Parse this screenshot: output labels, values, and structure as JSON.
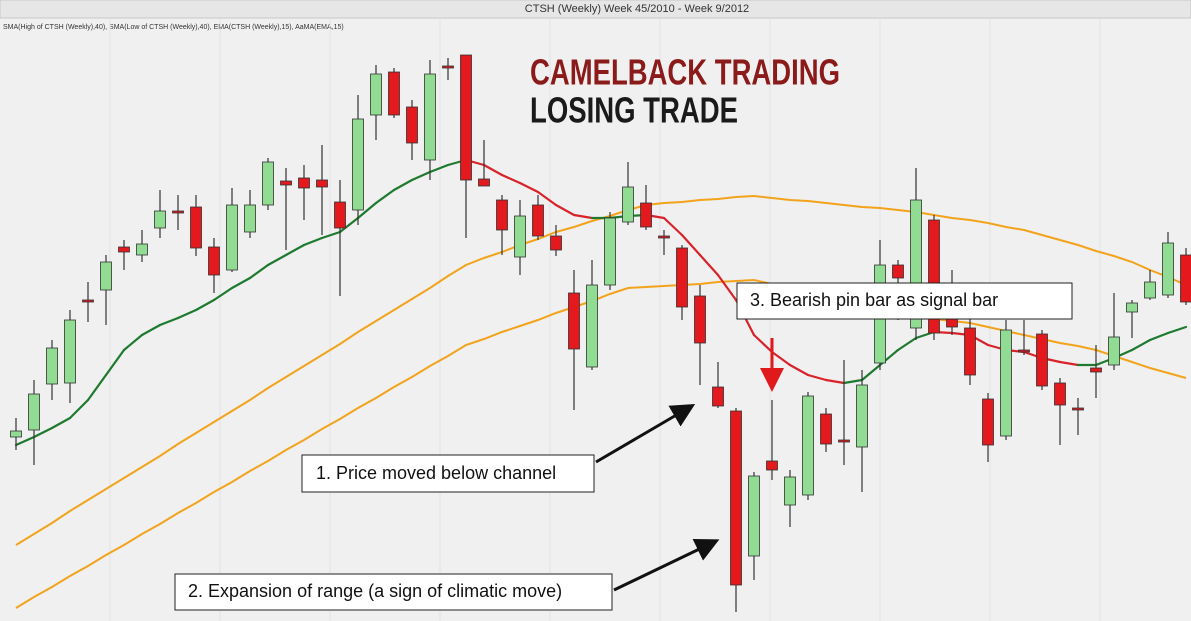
{
  "chart_data": {
    "type": "candlestick",
    "title": "CTSH (Weekly)  Week 45/2010 - Week 9/2012",
    "indicators": "SMA(High of CTSH (Weekly),40), SMA(Low of CTSH (Weekly),40), EMA(CTSH (Weekly),15), AaMA(EMA,15)",
    "headline": [
      "CAMELBACK TRADING",
      "LOSING TRADE"
    ],
    "annotations": [
      "3. Bearish pin bar as signal bar",
      "1. Price moved below channel",
      "2. Expansion of range (a sign of climatic move)"
    ],
    "categories": [
      null,
      null,
      null,
      null,
      null,
      null,
      null,
      null,
      null,
      null,
      null,
      null,
      null,
      null,
      null,
      null,
      null,
      null,
      null,
      null,
      null,
      null,
      null,
      null,
      null,
      null,
      null,
      null,
      null,
      null,
      null,
      null,
      null,
      null,
      null,
      null,
      null,
      null,
      null,
      null,
      null,
      null,
      null,
      null,
      null,
      null,
      null,
      null,
      null,
      null,
      null,
      null,
      null,
      null,
      null,
      null,
      null,
      null,
      null,
      null,
      null,
      null,
      null,
      null,
      null,
      null
    ],
    "open": [
      184,
      191,
      237,
      238,
      321,
      331,
      374,
      366,
      393,
      410,
      414,
      374,
      351,
      389,
      416,
      440,
      443,
      441,
      419,
      411,
      506,
      549,
      514,
      461,
      555,
      566,
      442,
      421,
      364,
      416,
      385,
      328,
      254,
      336,
      399,
      418,
      385,
      373,
      325,
      234,
      210,
      65,
      160,
      116,
      126,
      207,
      181,
      174,
      258,
      356,
      293,
      401,
      306,
      293,
      222,
      185,
      271,
      287,
      238,
      213,
      253,
      256,
      309,
      323,
      326,
      366
    ],
    "high": [
      203,
      241,
      281,
      311,
      339,
      366,
      381,
      391,
      431,
      426,
      426,
      383,
      433,
      431,
      463,
      453,
      456,
      476,
      441,
      526,
      556,
      553,
      521,
      561,
      563,
      566,
      481,
      426,
      421,
      426,
      396,
      351,
      361,
      409,
      459,
      436,
      391,
      376,
      336,
      259,
      213,
      149,
      221,
      151,
      229,
      213,
      261,
      251,
      381,
      361,
      453,
      406,
      351,
      318,
      228,
      301,
      301,
      291,
      243,
      223,
      276,
      328,
      321,
      351,
      389,
      373
    ],
    "low": [
      171,
      156,
      221,
      218,
      299,
      296,
      351,
      359,
      383,
      391,
      365,
      328,
      349,
      383,
      411,
      371,
      401,
      386,
      325,
      396,
      481,
      503,
      461,
      441,
      541,
      383,
      435,
      366,
      346,
      381,
      365,
      211,
      251,
      331,
      396,
      391,
      366,
      301,
      236,
      213,
      9,
      41,
      141,
      94,
      121,
      169,
      156,
      129,
      251,
      301,
      281,
      281,
      286,
      236,
      159,
      181,
      266,
      231,
      176,
      186,
      223,
      251,
      283,
      321,
      323,
      316
    ],
    "close": [
      190,
      227,
      273,
      301,
      320,
      359,
      369,
      377,
      410,
      409,
      373,
      346,
      416,
      416,
      459,
      436,
      433,
      434,
      393,
      502,
      547,
      506,
      478,
      547,
      554,
      441,
      435,
      391,
      405,
      385,
      371,
      272,
      336,
      403,
      434,
      394,
      384,
      314,
      278,
      215,
      36,
      145,
      151,
      144,
      225,
      177,
      180,
      236,
      356,
      343,
      421,
      288,
      294,
      246,
      176,
      291,
      270,
      235,
      216,
      212,
      249,
      284,
      318,
      339,
      378,
      319
    ],
    "up_color": "#90dc92",
    "down_color": "#e3191d",
    "lines": [
      {
        "color": "#f2a31b",
        "values": [
          76,
          87,
          98,
          110,
          121,
          132,
          143,
          154,
          165,
          177,
          188,
          199,
          210,
          221,
          233,
          244,
          255,
          266,
          277,
          289,
          300,
          311,
          322,
          333,
          345,
          356,
          363,
          369,
          376,
          382,
          389,
          394,
          400,
          405,
          411,
          416,
          418,
          419,
          421,
          422,
          424,
          425,
          423,
          421,
          420,
          418,
          416,
          414,
          413,
          411,
          409,
          406,
          403,
          401,
          398,
          394,
          391,
          386,
          381,
          376,
          370,
          365,
          359,
          351,
          344,
          336
        ]
      },
      {
        "color": "#f2a31b",
        "values": [
          13,
          24,
          34,
          45,
          55,
          66,
          76,
          87,
          97,
          108,
          118,
          129,
          139,
          150,
          160,
          171,
          181,
          192,
          202,
          213,
          223,
          234,
          244,
          255,
          265,
          276,
          282,
          289,
          295,
          301,
          308,
          314,
          320,
          327,
          333,
          334,
          335,
          336,
          337,
          339,
          340,
          341,
          337,
          332,
          328,
          323,
          319,
          315,
          310,
          306,
          304,
          302,
          300,
          298,
          294,
          290,
          286,
          282,
          278,
          275,
          271,
          265,
          259,
          253,
          248,
          243
        ]
      },
      {
        "color": "#1d7a2f",
        "down_color": "#d8232a",
        "values": [
          176,
          184,
          193,
          203,
          221,
          246,
          271,
          286,
          296,
          303,
          311,
          321,
          333,
          343,
          356,
          366,
          376,
          383,
          389,
          403,
          418,
          431,
          441,
          449,
          456,
          461,
          456,
          446,
          438,
          429,
          416,
          406,
          403,
          403,
          405,
          406,
          403,
          386,
          366,
          346,
          321,
          286,
          269,
          256,
          246,
          241,
          238,
          241,
          256,
          271,
          283,
          289,
          288,
          286,
          276,
          271,
          269,
          263,
          259,
          256,
          256,
          263,
          271,
          281,
          288,
          294
        ]
      }
    ],
    "ylim": [
      0,
      600
    ]
  }
}
